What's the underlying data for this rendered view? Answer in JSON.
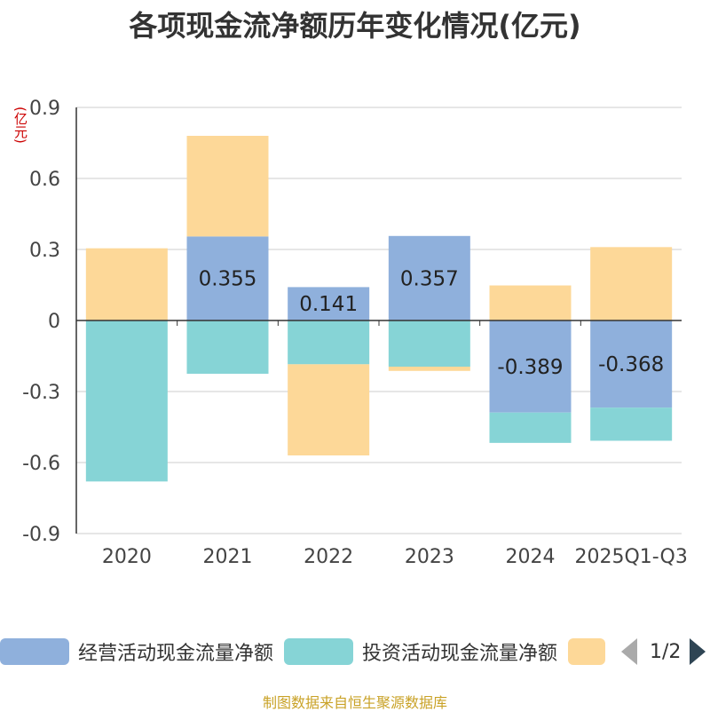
{
  "chart_data": {
    "type": "bar",
    "stacked": true,
    "title": "各项现金流净额历年变化情况(亿元)",
    "ylabel": "(亿元)",
    "categories": [
      "2020",
      "2021",
      "2022",
      "2023",
      "2024",
      "2025Q1-Q3"
    ],
    "ylim": [
      -0.9,
      0.9
    ],
    "yticks": [
      "0.9",
      "0.6",
      "0.3",
      "0",
      "-0.3",
      "-0.6",
      "-0.9"
    ],
    "ytick_values": [
      0.9,
      0.6,
      0.3,
      0,
      -0.3,
      -0.6,
      -0.9
    ],
    "grid": true,
    "legend_position": "bottom",
    "series": [
      {
        "name": "经营活动现金流量净额",
        "color": "#8fb0dc",
        "values": [
          0.0,
          0.355,
          0.141,
          0.357,
          -0.389,
          -0.368
        ],
        "labels": [
          "",
          "0.355",
          "0.141",
          "0.357",
          "-0.389",
          "-0.368"
        ]
      },
      {
        "name": "投资活动现金流量净额",
        "color": "#86d4d6",
        "values": [
          -0.68,
          -0.225,
          -0.185,
          -0.195,
          -0.128,
          -0.14
        ]
      },
      {
        "name": "",
        "color": "#fdd898",
        "values": [
          0.305,
          0.425,
          -0.385,
          -0.018,
          0.148,
          0.31
        ]
      }
    ]
  },
  "legend": {
    "item1": "经营活动现金流量净额",
    "item2": "投资活动现金流量净额",
    "page": "1/2"
  },
  "footer": "制图数据来自恒生聚源数据库"
}
